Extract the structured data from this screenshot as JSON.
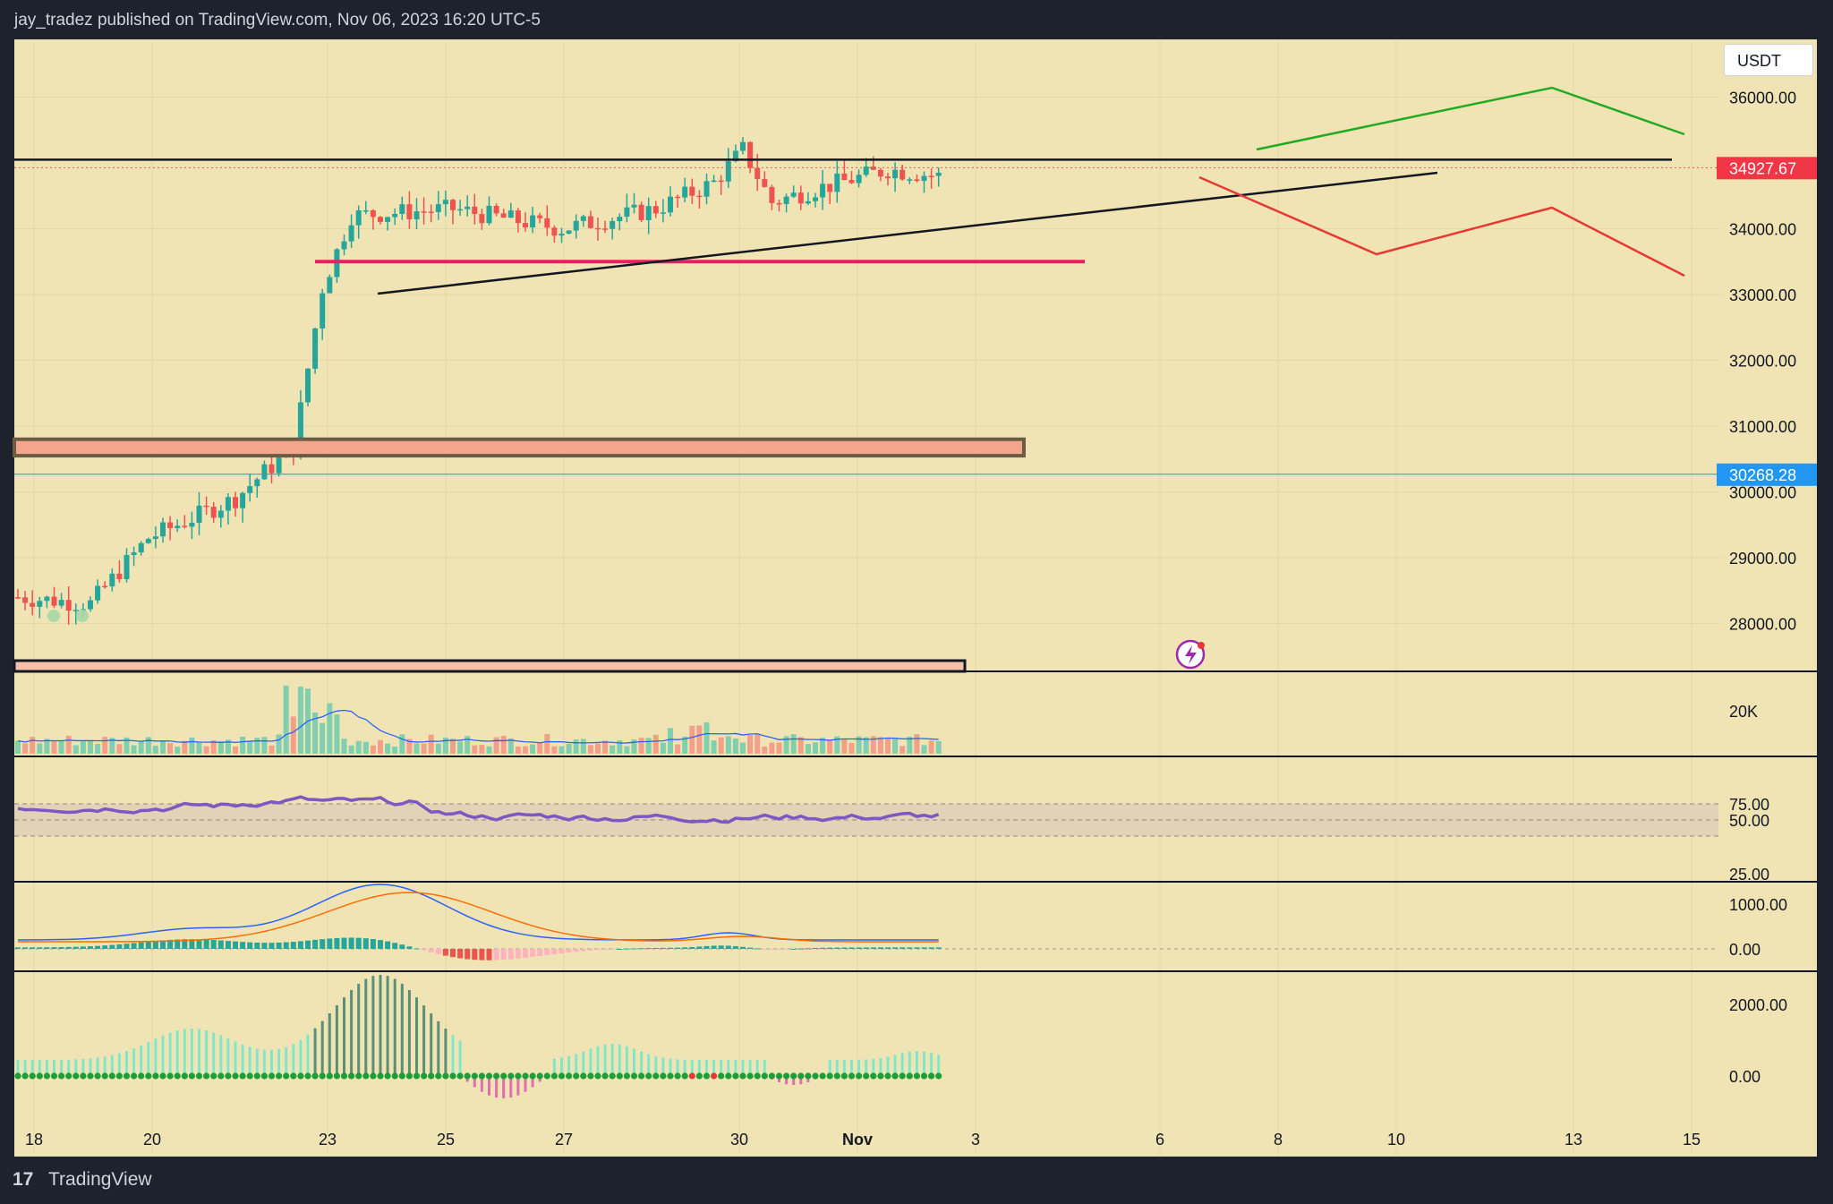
{
  "header": {
    "publisher": "jay_tradez published on TradingView.com, Nov 06, 2023 16:20 UTC-5"
  },
  "footer": {
    "logo": "17",
    "brand": "TradingView"
  },
  "currency_badge": "USDT",
  "colors": {
    "background": "#f0e4b4",
    "up": "#26a69a",
    "down": "#ef5350",
    "rsi": "#7e57c2",
    "support_line": "#e91e63",
    "bull_path": "#22aa22",
    "bear_path": "#e53935"
  },
  "chart_data": [
    {
      "type": "candlestick",
      "panel": "price",
      "y_ticks": [
        "36000.00",
        "34000.00",
        "33000.00",
        "32000.00",
        "31000.00",
        "30000.00",
        "29000.00",
        "28000.00"
      ],
      "ylim": [
        27300,
        36850
      ],
      "x_ticks": [
        "18",
        "20",
        "23",
        "25",
        "27",
        "30",
        "Nov",
        "3",
        "6",
        "8",
        "10",
        "13",
        "15"
      ],
      "last_price_label": "34927.67",
      "marker_price_label": "30268.28",
      "last_price": 34927.67,
      "marker_price": 30268.28,
      "horizontal_levels": [
        35050,
        33500
      ],
      "zone": [
        30550,
        30800
      ]
    },
    {
      "type": "bar",
      "panel": "volume",
      "y_ticks": [
        "20K"
      ]
    },
    {
      "type": "line",
      "panel": "rsi",
      "y_ticks": [
        "75.00",
        "50.00",
        "25.00"
      ],
      "ylim": [
        25,
        75
      ]
    },
    {
      "type": "line",
      "panel": "macd",
      "y_ticks": [
        "1000.00",
        "0.00"
      ]
    },
    {
      "type": "bar",
      "panel": "momentum",
      "y_ticks": [
        "2000.00",
        "0.00"
      ]
    }
  ]
}
